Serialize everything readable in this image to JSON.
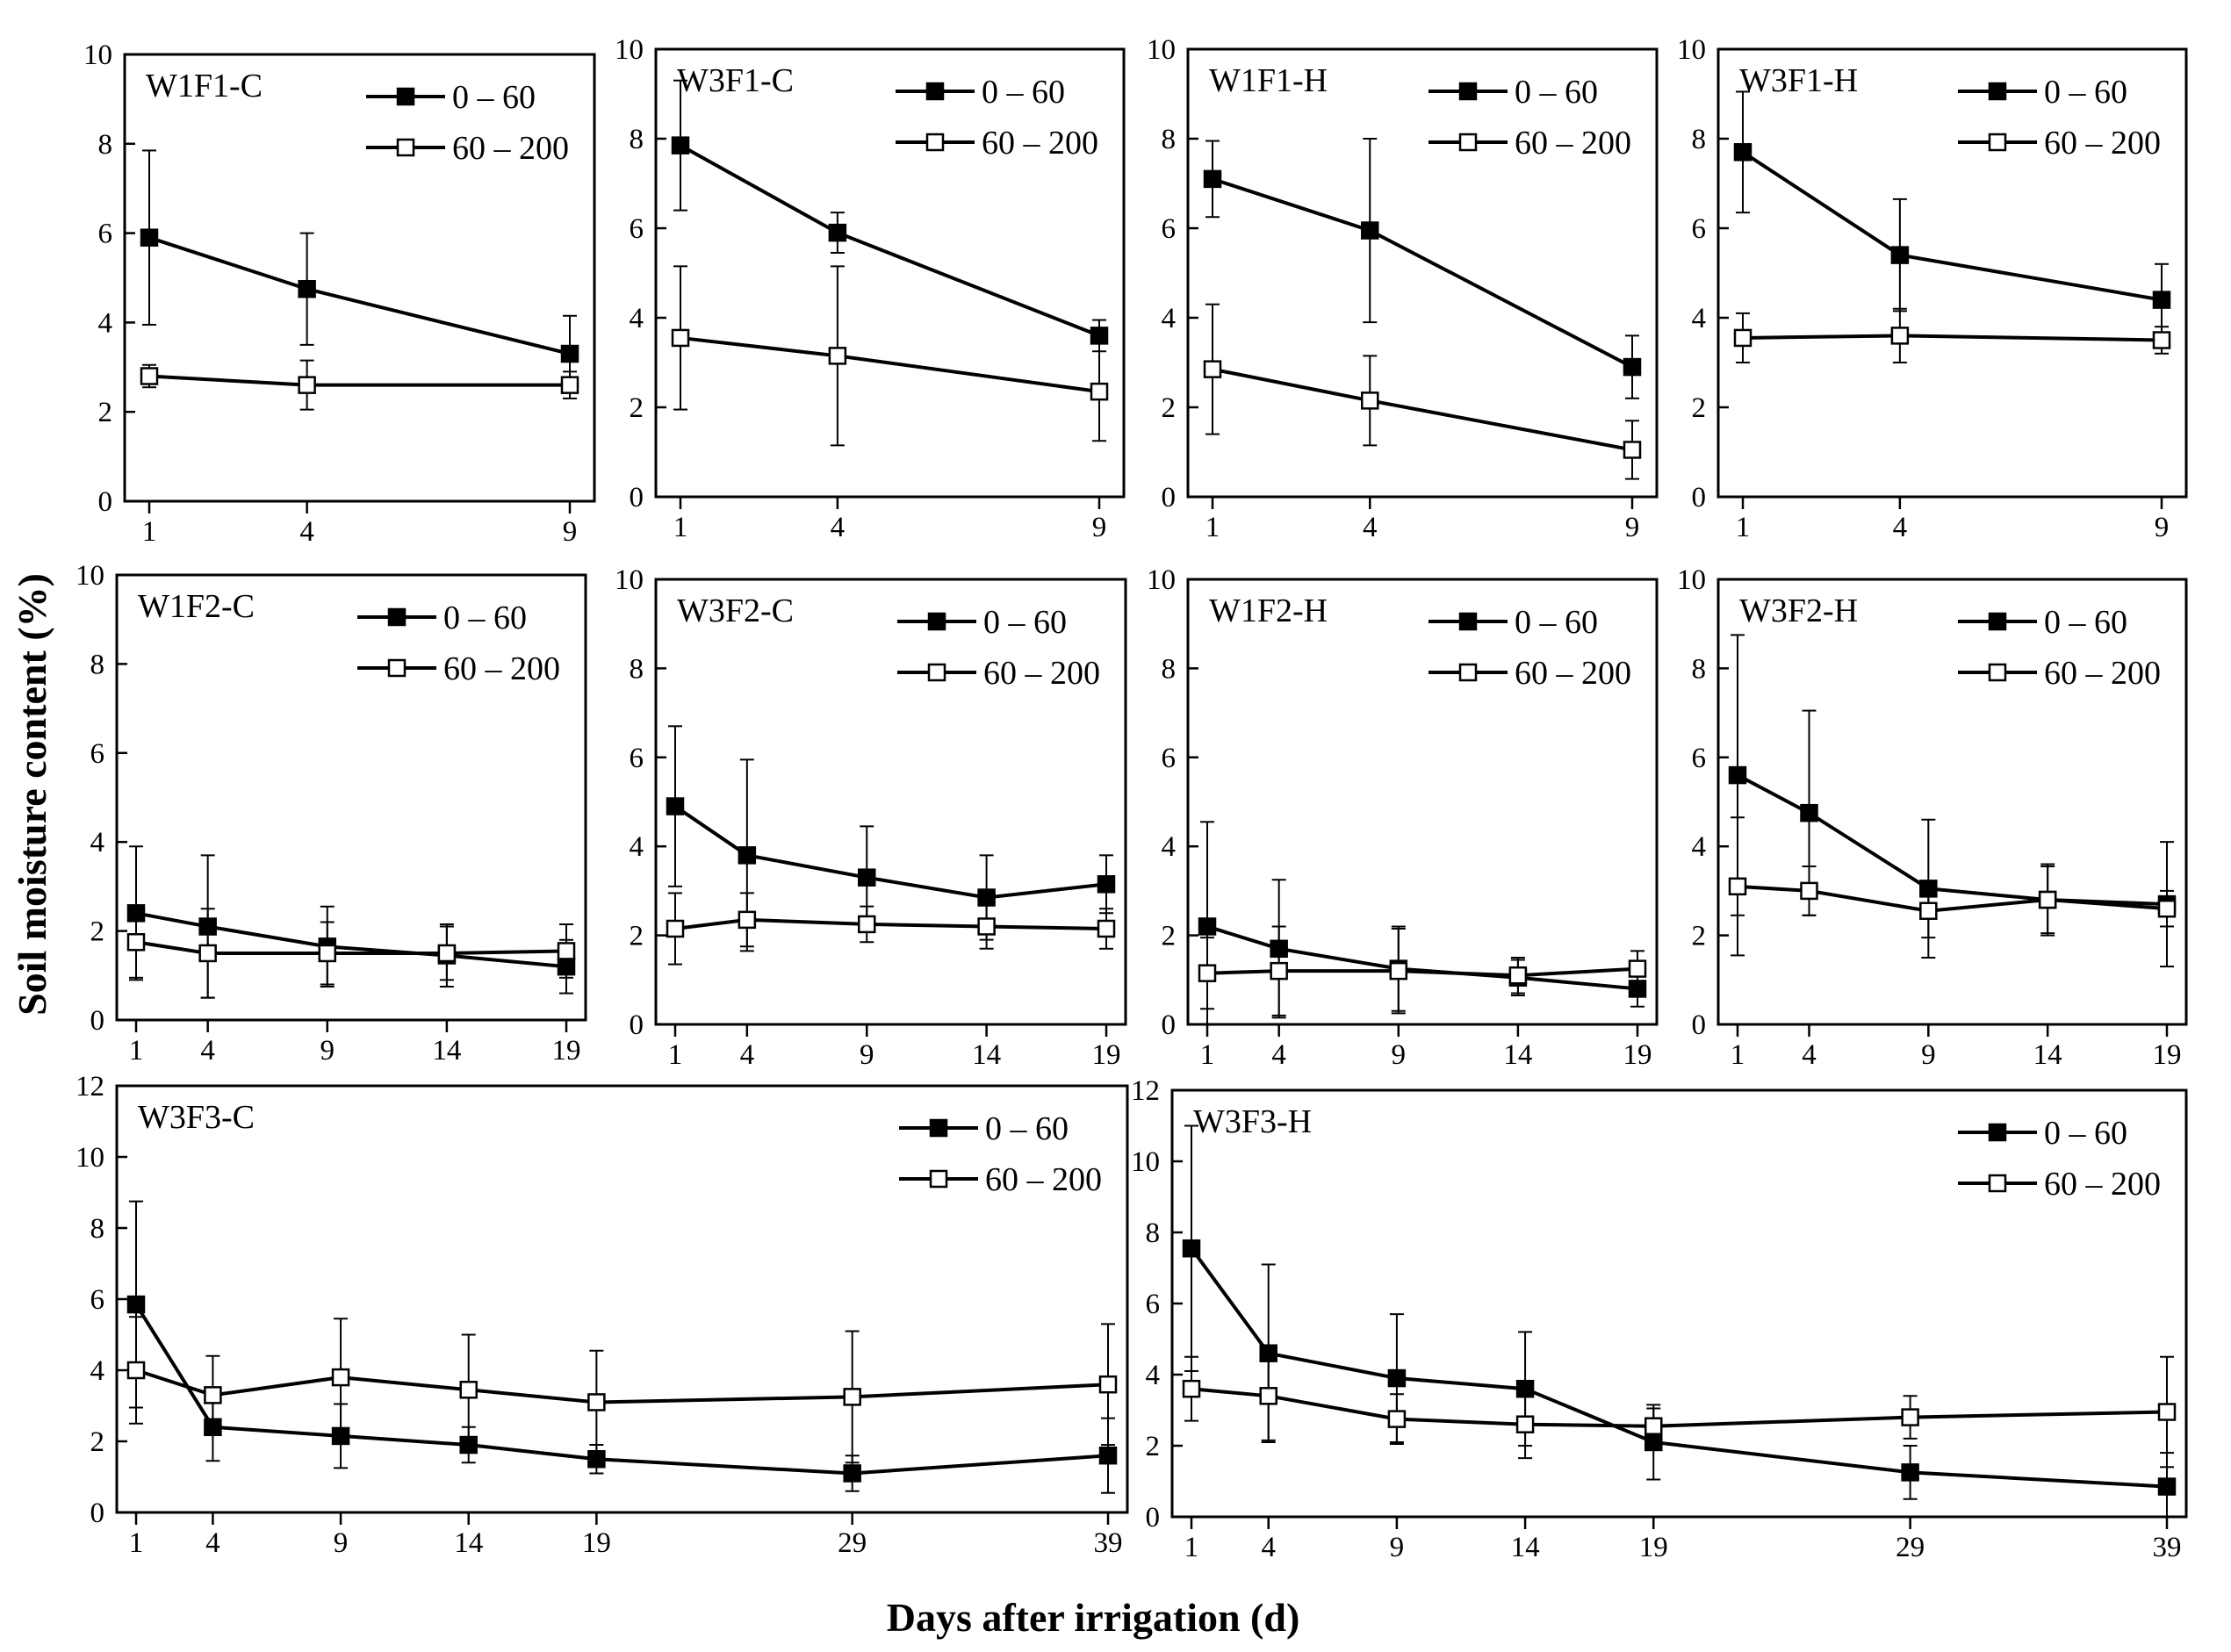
{
  "figure": {
    "ylabel": "Soil moisture content  (%)",
    "xlabel": "Days after irrigation (d)"
  },
  "chart_data": [
    {
      "type": "line",
      "title": "W1F1-C",
      "x": [
        1,
        4,
        9
      ],
      "ylim": [
        0,
        10
      ],
      "yticks": [
        0,
        2,
        4,
        6,
        8,
        10
      ],
      "series": [
        {
          "name": "0 – 60",
          "marker": "filled-square",
          "values": [
            5.9,
            4.75,
            3.3
          ],
          "err": [
            1.95,
            1.25,
            0.85
          ]
        },
        {
          "name": "60 – 200",
          "marker": "open-square",
          "values": [
            2.8,
            2.6,
            2.6
          ],
          "err": [
            0.25,
            0.55,
            0.3
          ]
        }
      ]
    },
    {
      "type": "line",
      "title": "W3F1-C",
      "x": [
        1,
        4,
        9
      ],
      "ylim": [
        0,
        10
      ],
      "yticks": [
        0,
        2,
        4,
        6,
        8,
        10
      ],
      "series": [
        {
          "name": "0 – 60",
          "marker": "filled-square",
          "values": [
            7.85,
            5.9,
            3.6
          ],
          "err": [
            1.45,
            0.45,
            0.35
          ]
        },
        {
          "name": "60 – 200",
          "marker": "open-square",
          "values": [
            3.55,
            3.15,
            2.35
          ],
          "err": [
            1.6,
            2.0,
            1.1
          ]
        }
      ]
    },
    {
      "type": "line",
      "title": "W1F1-H",
      "x": [
        1,
        4,
        9
      ],
      "ylim": [
        0,
        10
      ],
      "yticks": [
        0,
        2,
        4,
        6,
        8,
        10
      ],
      "series": [
        {
          "name": "0 – 60",
          "marker": "filled-square",
          "values": [
            7.1,
            5.95,
            2.9
          ],
          "err": [
            0.85,
            2.05,
            0.7
          ]
        },
        {
          "name": "60 – 200",
          "marker": "open-square",
          "values": [
            2.85,
            2.15,
            1.05
          ],
          "err": [
            1.45,
            1.0,
            0.65
          ]
        }
      ]
    },
    {
      "type": "line",
      "title": "W3F1-H",
      "x": [
        1,
        4,
        9
      ],
      "ylim": [
        0,
        10
      ],
      "yticks": [
        0,
        2,
        4,
        6,
        8,
        10
      ],
      "series": [
        {
          "name": "0 – 60",
          "marker": "filled-square",
          "values": [
            7.7,
            5.4,
            4.4
          ],
          "err": [
            1.35,
            1.25,
            0.8
          ]
        },
        {
          "name": "60 – 200",
          "marker": "open-square",
          "values": [
            3.55,
            3.6,
            3.5
          ],
          "err": [
            0.55,
            0.6,
            0.3
          ]
        }
      ]
    },
    {
      "type": "line",
      "title": "W1F2-C",
      "x": [
        1,
        4,
        9,
        14,
        19
      ],
      "ylim": [
        0,
        10
      ],
      "yticks": [
        0,
        2,
        4,
        6,
        8,
        10
      ],
      "series": [
        {
          "name": "0 – 60",
          "marker": "filled-square",
          "values": [
            2.4,
            2.1,
            1.65,
            1.45,
            1.2
          ],
          "err": [
            1.5,
            1.6,
            0.9,
            0.7,
            0.6
          ]
        },
        {
          "name": "60 – 200",
          "marker": "open-square",
          "values": [
            1.75,
            1.5,
            1.5,
            1.5,
            1.55
          ],
          "err": [
            0.8,
            1.0,
            0.7,
            0.6,
            0.6
          ]
        }
      ]
    },
    {
      "type": "line",
      "title": "W3F2-C",
      "x": [
        1,
        4,
        9,
        14,
        19
      ],
      "ylim": [
        0,
        10
      ],
      "yticks": [
        0,
        2,
        4,
        6,
        8,
        10
      ],
      "series": [
        {
          "name": "0 – 60",
          "marker": "filled-square",
          "values": [
            4.9,
            3.8,
            3.3,
            2.85,
            3.15
          ],
          "err": [
            1.8,
            2.15,
            1.15,
            0.95,
            0.65
          ]
        },
        {
          "name": "60 – 200",
          "marker": "open-square",
          "values": [
            2.15,
            2.35,
            2.25,
            2.2,
            2.15
          ],
          "err": [
            0.8,
            0.6,
            0.4,
            0.5,
            0.45
          ]
        }
      ]
    },
    {
      "type": "line",
      "title": "W1F2-H",
      "x": [
        1,
        4,
        9,
        14,
        19
      ],
      "ylim": [
        0,
        10
      ],
      "yticks": [
        0,
        2,
        4,
        6,
        8,
        10
      ],
      "series": [
        {
          "name": "0 – 60",
          "marker": "filled-square",
          "values": [
            2.2,
            1.7,
            1.25,
            1.05,
            0.8
          ],
          "err": [
            2.35,
            1.55,
            0.95,
            0.4,
            0.4
          ]
        },
        {
          "name": "60 – 200",
          "marker": "open-square",
          "values": [
            1.15,
            1.2,
            1.2,
            1.1,
            1.25
          ],
          "err": [
            0.8,
            1.0,
            0.95,
            0.4,
            0.4
          ]
        }
      ]
    },
    {
      "type": "line",
      "title": "W3F2-H",
      "x": [
        1,
        4,
        9,
        14,
        19
      ],
      "ylim": [
        0,
        10
      ],
      "yticks": [
        0,
        2,
        4,
        6,
        8,
        10
      ],
      "series": [
        {
          "name": "0 – 60",
          "marker": "filled-square",
          "values": [
            5.6,
            4.75,
            3.05,
            2.8,
            2.7
          ],
          "err": [
            3.15,
            2.3,
            1.55,
            0.8,
            1.4
          ]
        },
        {
          "name": "60 – 200",
          "marker": "open-square",
          "values": [
            3.1,
            3.0,
            2.55,
            2.8,
            2.6
          ],
          "err": [
            1.55,
            0.55,
            0.6,
            0.75,
            0.4
          ]
        }
      ]
    },
    {
      "type": "line",
      "title": "W3F3-C",
      "x": [
        1,
        4,
        9,
        14,
        19,
        29,
        39
      ],
      "ylim": [
        0,
        12
      ],
      "yticks": [
        0,
        2,
        4,
        6,
        8,
        10,
        12
      ],
      "series": [
        {
          "name": "0 – 60",
          "marker": "filled-square",
          "values": [
            5.85,
            2.4,
            2.15,
            1.9,
            1.5,
            1.1,
            1.6
          ],
          "err": [
            2.9,
            0.95,
            0.9,
            0.5,
            0.4,
            0.5,
            1.05
          ]
        },
        {
          "name": "60 – 200",
          "marker": "open-square",
          "values": [
            4.0,
            3.3,
            3.8,
            3.45,
            3.1,
            3.25,
            3.6
          ],
          "err": [
            1.5,
            1.1,
            1.65,
            1.55,
            1.45,
            1.85,
            1.7
          ]
        }
      ]
    },
    {
      "type": "line",
      "title": "W3F3-H",
      "x": [
        1,
        4,
        9,
        14,
        19,
        29,
        39
      ],
      "ylim": [
        0,
        12
      ],
      "yticks": [
        0,
        2,
        4,
        6,
        8,
        10,
        12
      ],
      "series": [
        {
          "name": "0 – 60",
          "marker": "filled-square",
          "values": [
            7.55,
            4.6,
            3.9,
            3.6,
            2.1,
            1.25,
            0.85
          ],
          "err": [
            3.45,
            2.5,
            1.8,
            1.6,
            1.05,
            0.75,
            0.95
          ]
        },
        {
          "name": "60 – 200",
          "marker": "open-square",
          "values": [
            3.6,
            3.4,
            2.75,
            2.6,
            2.55,
            2.8,
            2.95
          ],
          "err": [
            0.9,
            1.25,
            0.7,
            0.95,
            0.5,
            0.6,
            1.55
          ]
        }
      ]
    }
  ]
}
